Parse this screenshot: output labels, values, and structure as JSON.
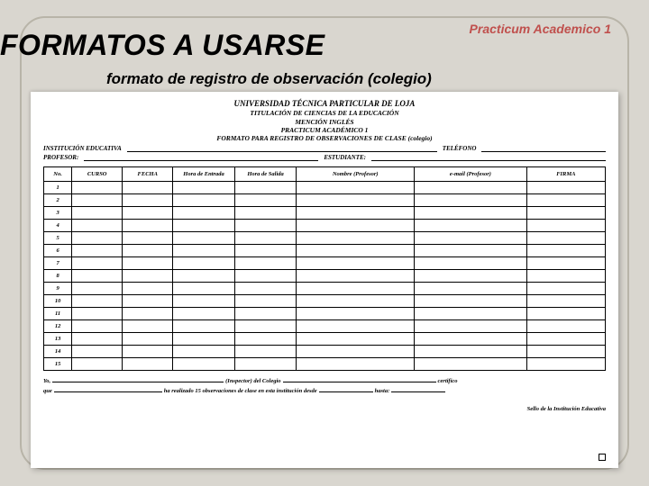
{
  "corner": "Practicum Academico 1",
  "title": "FORMATOS A USARSE",
  "subtitle": "formato de registro de observación (colegio)",
  "form": {
    "header": {
      "l1": "UNIVERSIDAD  TÉCNICA  PARTICULAR  DE  LOJA",
      "l2": "TITULACIÓN DE CIENCIAS DE LA EDUCACIÓN",
      "l3": "MENCIÓN INGLÉS",
      "l4": "PRACTICUM ACADÉMICO  1",
      "l5": "FORMATO PARA REGISTRO DE OBSERVACIONES DE CLASE (colegio)"
    },
    "info": {
      "institucion_label": "INSTITUCIÓN  EDUCATIVA",
      "telefono_label": "TELÉFONO",
      "profesor_label": "PROFESOR:",
      "estudiante_label": "ESTUDIANTE:"
    },
    "table": {
      "columns": [
        "No.",
        "CURSO",
        "FECHA",
        "Hora de Entrada",
        "Hora de Salida",
        "Nombre (Profesor)",
        "e-mail (Profesor)",
        "FIRMA"
      ],
      "col_widths": [
        "5%",
        "9%",
        "9%",
        "11%",
        "11%",
        "21%",
        "20%",
        "14%"
      ],
      "row_numbers": [
        "1",
        "2",
        "3",
        "4",
        "5",
        "6",
        "7",
        "8",
        "9",
        "10",
        "11",
        "12",
        "13",
        "14",
        "15"
      ]
    },
    "footer": {
      "yo": "Yo,",
      "inspector": "(Inspector) del Colegio",
      "certifico": "certifico",
      "que": "que",
      "realizado": "ha realizado 15 observaciones de clase en esta institución desde",
      "hasta": "hasta:",
      "sello": "Sello de la Institución Educativa"
    }
  }
}
